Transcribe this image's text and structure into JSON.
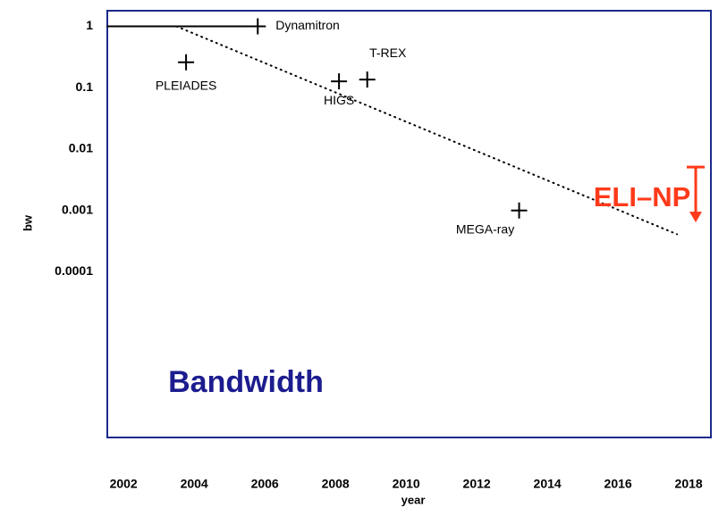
{
  "chart_data": {
    "type": "scatter",
    "xlabel": "year",
    "ylabel": "bw",
    "xlim": [
      2001.54,
      2018.63
    ],
    "ylim": [
      2e-07,
      1.8
    ],
    "log_y": true,
    "xticks": [
      2002,
      2004,
      2006,
      2008,
      2010,
      2012,
      2014,
      2016,
      2018
    ],
    "yticks": [
      1,
      0.1,
      0.01,
      0.001,
      0.0001
    ],
    "frame_color": "#1c2a8c",
    "points": [
      {
        "label": "Dynamitron",
        "x": 2005.8,
        "y": 1
      },
      {
        "label": "PLEIADES",
        "x": 2003.77,
        "y": 0.26
      },
      {
        "label": "HIGS",
        "x": 2008.1,
        "y": 0.127
      },
      {
        "label": "T-REX",
        "x": 2008.9,
        "y": 0.136
      },
      {
        "label": "MEGA-ray",
        "x": 2013.2,
        "y": 0.001
      }
    ],
    "lines": [
      {
        "x": [
          2001.54,
          2005.8
        ],
        "values": [
          1,
          1
        ],
        "color": "#000000",
        "style": "solid"
      },
      {
        "x": [
          2003.5,
          2017.67
        ],
        "values": [
          1,
          0.00041
        ],
        "color": "#000000",
        "style": "dotted"
      }
    ],
    "limit": {
      "label": "ELI–NP",
      "x": 2018.2,
      "value": 0.0051,
      "direction": "upper",
      "color": "#ff3a1a"
    },
    "annotation": {
      "text": "Bandwidth",
      "color": "#1c1c8f"
    }
  }
}
